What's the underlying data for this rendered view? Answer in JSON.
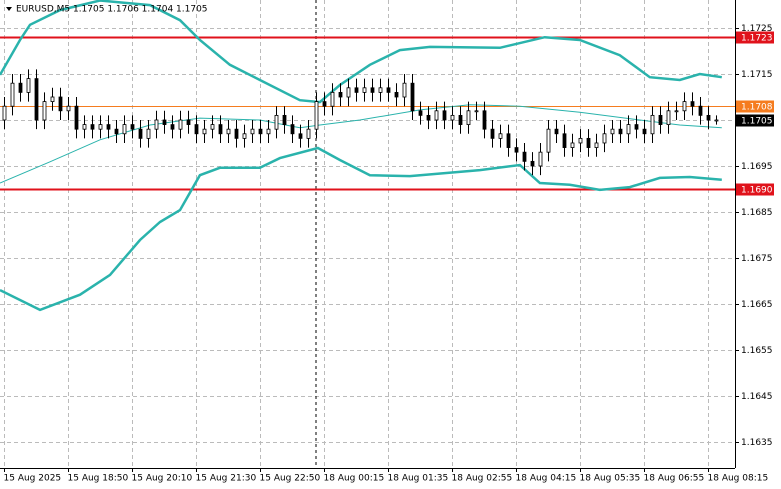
{
  "chart_data": {
    "type": "candlestick",
    "title": "EURUSD,M5  1.1705 1.1706 1.1704 1.1705",
    "xlim": [
      -0.5,
      91.4
    ],
    "xticks": [
      {
        "value": 0,
        "label": "15 Aug 2025"
      },
      {
        "value": 8,
        "label": "15 Aug 18:50"
      },
      {
        "value": 16,
        "label": "15 Aug 20:10"
      },
      {
        "value": 24,
        "label": "15 Aug 21:30"
      },
      {
        "value": 32,
        "label": "15 Aug 22:50"
      },
      {
        "value": 40,
        "label": "18 Aug 00:15"
      },
      {
        "value": 48,
        "label": "18 Aug 01:35"
      },
      {
        "value": 56,
        "label": "18 Aug 02:55"
      },
      {
        "value": 64,
        "label": "18 Aug 04:15"
      },
      {
        "value": 72,
        "label": "18 Aug 05:35"
      },
      {
        "value": 80,
        "label": "18 Aug 06:55"
      },
      {
        "value": 88,
        "label": "18 Aug 08:15"
      }
    ],
    "ylim": [
      1.16293,
      1.17311
    ],
    "yticks": [
      1.1725,
      1.1715,
      1.1705,
      1.1695,
      1.1685,
      1.1675,
      1.1665,
      1.1655,
      1.1645,
      1.1635
    ],
    "grid": true,
    "up_color": "#ffffff",
    "down_color": "#000000",
    "open": [
      1.1705,
      1.1708,
      1.1713,
      1.1711,
      1.1714,
      1.1705,
      1.1709,
      1.171,
      1.1707,
      1.1708,
      1.1703,
      1.1704,
      1.1703,
      1.1704,
      1.1703,
      1.1702,
      1.1704,
      1.1703,
      1.1701,
      1.1703,
      1.1705,
      1.1704,
      1.1703,
      1.1705,
      1.1704,
      1.1702,
      1.1703,
      1.1704,
      1.1702,
      1.1703,
      1.1701,
      1.1702,
      1.1703,
      1.1702,
      1.1703,
      1.1706,
      1.1704,
      1.1702,
      1.1701,
      1.1703,
      1.1709,
      1.1708,
      1.1711,
      1.171,
      1.1712,
      1.1711,
      1.1712,
      1.1711,
      1.1712,
      1.1711,
      1.171,
      1.1713,
      1.1707,
      1.1706,
      1.1705,
      1.1707,
      1.1705,
      1.1706,
      1.1704,
      1.1707,
      1.1707,
      1.1703,
      1.1701,
      1.1702,
      1.1699,
      1.1698,
      1.1696,
      1.1695,
      1.1698,
      1.1703,
      1.1702,
      1.1699,
      1.17,
      1.1701,
      1.1699,
      1.17,
      1.1702,
      1.1703,
      1.1702,
      1.1704,
      1.1703,
      1.1702,
      1.1706,
      1.1704,
      1.1707,
      1.1707,
      1.1709,
      1.1708,
      1.1706,
      1.1705
    ],
    "high": [
      1.171,
      1.1715,
      1.1715,
      1.1716,
      1.1716,
      1.1711,
      1.1712,
      1.1712,
      1.171,
      1.171,
      1.1706,
      1.1706,
      1.1706,
      1.1706,
      1.1705,
      1.1706,
      1.1706,
      1.1705,
      1.1705,
      1.1707,
      1.1707,
      1.1706,
      1.1707,
      1.1707,
      1.1706,
      1.1705,
      1.1706,
      1.1706,
      1.1705,
      1.1705,
      1.1704,
      1.1705,
      1.1705,
      1.1705,
      1.1708,
      1.1708,
      1.1706,
      1.1704,
      1.1705,
      1.1711,
      1.1711,
      1.1713,
      1.1713,
      1.1714,
      1.1714,
      1.1714,
      1.1714,
      1.1714,
      1.1714,
      1.1713,
      1.1715,
      1.1715,
      1.1709,
      1.1708,
      1.1709,
      1.1709,
      1.1708,
      1.1708,
      1.1709,
      1.1709,
      1.1709,
      1.1705,
      1.1704,
      1.1704,
      1.1701,
      1.17,
      1.1698,
      1.17,
      1.1705,
      1.1705,
      1.1704,
      1.1702,
      1.1703,
      1.1703,
      1.1702,
      1.1704,
      1.1705,
      1.1705,
      1.1706,
      1.1706,
      1.1705,
      1.1708,
      1.1708,
      1.1709,
      1.1709,
      1.1711,
      1.1711,
      1.171,
      1.1708,
      1.1706
    ],
    "low": [
      1.1703,
      1.1706,
      1.1709,
      1.1709,
      1.1703,
      1.1703,
      1.1707,
      1.1705,
      1.1705,
      1.1701,
      1.1701,
      1.1701,
      1.1701,
      1.1701,
      1.17,
      1.17,
      1.1701,
      1.1699,
      1.1699,
      1.1701,
      1.1702,
      1.1701,
      1.1701,
      1.1702,
      1.17,
      1.17,
      1.1701,
      1.17,
      1.17,
      1.1699,
      1.1699,
      1.17,
      1.17,
      1.17,
      1.1701,
      1.1702,
      1.17,
      1.1699,
      1.1699,
      1.1701,
      1.1706,
      1.1706,
      1.1708,
      1.1708,
      1.1709,
      1.1709,
      1.1709,
      1.1709,
      1.1709,
      1.1708,
      1.1708,
      1.1705,
      1.1704,
      1.1703,
      1.1703,
      1.1703,
      1.1703,
      1.1702,
      1.1702,
      1.1705,
      1.1701,
      1.1699,
      1.1699,
      1.1697,
      1.1696,
      1.1694,
      1.1693,
      1.1693,
      1.1696,
      1.17,
      1.1697,
      1.1697,
      1.1698,
      1.1697,
      1.1697,
      1.1698,
      1.17,
      1.17,
      1.17,
      1.1701,
      1.17,
      1.17,
      1.1702,
      1.1702,
      1.1705,
      1.1705,
      1.1706,
      1.1704,
      1.1703,
      1.1704
    ],
    "close": [
      1.1708,
      1.1713,
      1.1711,
      1.1714,
      1.1705,
      1.1709,
      1.171,
      1.1707,
      1.1708,
      1.1703,
      1.1704,
      1.1703,
      1.1704,
      1.1703,
      1.1702,
      1.1704,
      1.1703,
      1.1701,
      1.1703,
      1.1705,
      1.1704,
      1.1703,
      1.1705,
      1.1704,
      1.1702,
      1.1703,
      1.1704,
      1.1702,
      1.1703,
      1.1701,
      1.1702,
      1.1703,
      1.1702,
      1.1703,
      1.1706,
      1.1704,
      1.1702,
      1.1701,
      1.1703,
      1.1709,
      1.1708,
      1.1711,
      1.171,
      1.1712,
      1.1711,
      1.1712,
      1.1711,
      1.1712,
      1.1711,
      1.171,
      1.1713,
      1.1707,
      1.1706,
      1.1705,
      1.1707,
      1.1705,
      1.1706,
      1.1704,
      1.1707,
      1.1707,
      1.1703,
      1.1701,
      1.1702,
      1.1699,
      1.1698,
      1.1696,
      1.1695,
      1.1698,
      1.1703,
      1.1702,
      1.1699,
      1.17,
      1.1701,
      1.1699,
      1.17,
      1.1702,
      1.1703,
      1.1702,
      1.1704,
      1.1703,
      1.1702,
      1.1706,
      1.1704,
      1.1707,
      1.1707,
      1.1709,
      1.1708,
      1.1706,
      1.1705,
      1.1705
    ],
    "bands": [
      {
        "color": "#2ab3ac",
        "width": 2.5,
        "x": [
          -0.5,
          2,
          3.25,
          7,
          12,
          18.25,
          22,
          24.5,
          28.25,
          32,
          37,
          39.5,
          42,
          45.75,
          49.5,
          53.25,
          62,
          67.6,
          72,
          77,
          80.75,
          84.5,
          87,
          89.75
        ],
        "values": [
          1.17148,
          1.17224,
          1.17257,
          1.17289,
          1.1731,
          1.173,
          1.17267,
          1.17224,
          1.1717,
          1.17137,
          1.17093,
          1.17089,
          1.17126,
          1.1717,
          1.17202,
          1.17209,
          1.17207,
          1.1723,
          1.17224,
          1.17191,
          1.17143,
          1.17137,
          1.1715,
          1.17143
        ]
      },
      {
        "color": "#2ab3ac",
        "width": 1,
        "x": [
          -0.5,
          5.75,
          12,
          18.25,
          24.5,
          32,
          37,
          39.5,
          44.5,
          52,
          58.25,
          64.5,
          72,
          79.5,
          84.5,
          89.75
        ],
        "values": [
          1.16913,
          1.16959,
          1.17007,
          1.17039,
          1.17054,
          1.1705,
          1.17033,
          1.17039,
          1.1705,
          1.17072,
          1.17083,
          1.1708,
          1.17067,
          1.1705,
          1.17039,
          1.17033
        ]
      },
      {
        "color": "#2ab3ac",
        "width": 2.5,
        "x": [
          -0.5,
          4.5,
          9.5,
          13.25,
          17,
          19.5,
          22,
          24.5,
          27,
          32,
          34.5,
          39.25,
          42,
          45.75,
          50.75,
          59.5,
          64.5,
          67,
          70.75,
          74.5,
          78.25,
          82,
          85.75,
          89.75
        ],
        "values": [
          1.1668,
          1.16637,
          1.1667,
          1.16713,
          1.16789,
          1.16828,
          1.16854,
          1.1693,
          1.16946,
          1.16946,
          1.16967,
          1.16989,
          1.16963,
          1.1693,
          1.16928,
          1.16941,
          1.16952,
          1.16913,
          1.16909,
          1.16898,
          1.16904,
          1.16924,
          1.16926,
          1.1692
        ]
      }
    ],
    "levels": [
      {
        "price": 1.1723,
        "color": "#e0121b",
        "width": 2
      },
      {
        "price": 1.1708,
        "color": "#f57c1f",
        "width": 1
      },
      {
        "price": 1.1705,
        "color": "#000000",
        "width": 0
      },
      {
        "price": 1.169,
        "label": "1.1690",
        "color": "#e0121b",
        "width": 2
      }
    ]
  }
}
